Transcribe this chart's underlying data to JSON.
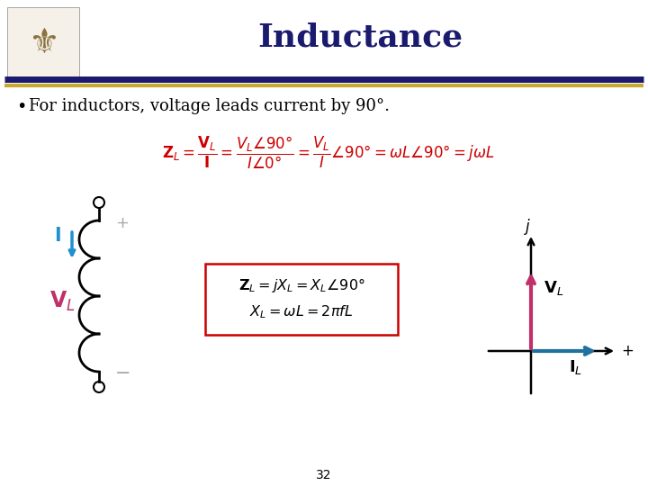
{
  "title": "Inductance",
  "title_color": "#1a1a6e",
  "title_fontsize": 26,
  "background_color": "#ffffff",
  "separator_color1": "#1a1a6e",
  "separator_color2": "#c8a830",
  "bullet_text": "For inductors, voltage leads current by 90°.",
  "page_number": "32",
  "vl_color": "#c0306a",
  "il_color": "#2070a0",
  "formula_color": "#cc0000",
  "box_border_color": "#cc0000",
  "gray_color": "#aaaaaa"
}
